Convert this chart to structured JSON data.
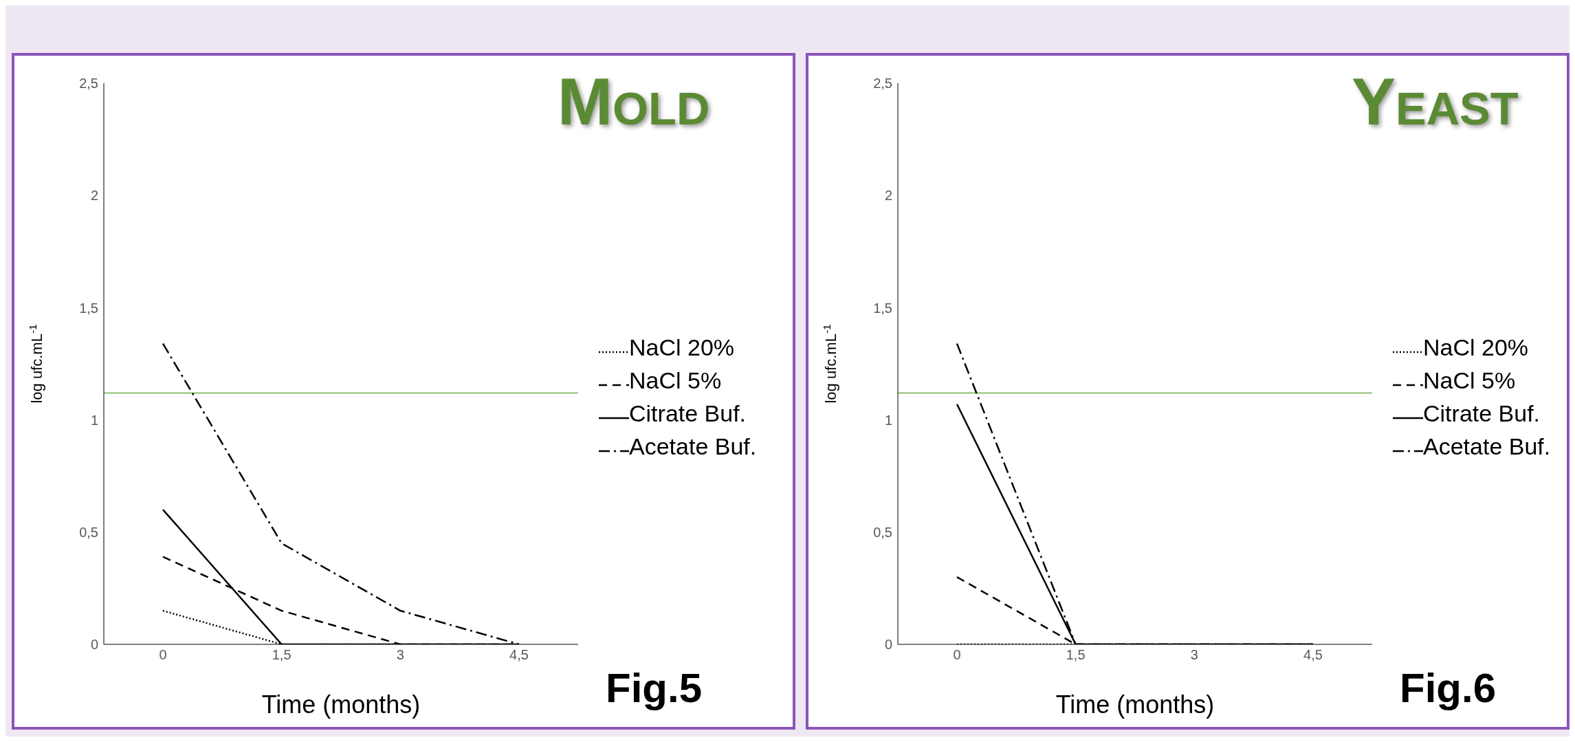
{
  "chart_data": [
    {
      "type": "line",
      "title": "Mold",
      "xlabel": "Time (months)",
      "ylabel": "log ufc.mL$^{-1}$",
      "categories": [
        "0",
        "1,5",
        "3",
        "4,5"
      ],
      "ylim": [
        0,
        2.5
      ],
      "yticks": [
        {
          "value": 0,
          "label": "0"
        },
        {
          "value": 0.5,
          "label": "0,5"
        },
        {
          "value": 1,
          "label": "1"
        },
        {
          "value": 1.5,
          "label": "1,5"
        },
        {
          "value": 2,
          "label": "2"
        },
        {
          "value": 2.5,
          "label": "2,5"
        }
      ],
      "legend": "right",
      "annotations": [
        "Fig.5"
      ],
      "ref_lines": [
        {
          "axis": "y",
          "value": 1.12,
          "color": "#70ad47"
        }
      ],
      "series": [
        {
          "name": "NaCl 20%",
          "color": "#000000",
          "line_style": "dotted",
          "values": [
            0.15,
            0,
            0,
            0
          ]
        },
        {
          "name": "NaCl 5%",
          "color": "#000000",
          "line_style": "dashed",
          "values": [
            0.39,
            0.15,
            0,
            0
          ]
        },
        {
          "name": "Citrate Buf.",
          "color": "#000000",
          "line_style": "solid",
          "values": [
            0.6,
            0,
            0,
            0
          ]
        },
        {
          "name": "Acetate Buf.",
          "color": "#000000",
          "line_style": "dashdot",
          "values": [
            1.34,
            0.45,
            0.15,
            0
          ]
        }
      ]
    },
    {
      "type": "line",
      "title": "Yeast",
      "xlabel": "Time (months)",
      "ylabel": "log ufc.mL$^{-1}$",
      "categories": [
        "0",
        "1,5",
        "3",
        "4,5"
      ],
      "ylim": [
        0,
        2.5
      ],
      "yticks": [
        {
          "value": 0,
          "label": "0"
        },
        {
          "value": 0.5,
          "label": "0,5"
        },
        {
          "value": 1,
          "label": "1"
        },
        {
          "value": 1.5,
          "label": "1,5"
        },
        {
          "value": 2,
          "label": "2"
        },
        {
          "value": 2.5,
          "label": "2,5"
        }
      ],
      "legend": "right",
      "annotations": [
        "Fig.6"
      ],
      "ref_lines": [
        {
          "axis": "y",
          "value": 1.12,
          "color": "#70ad47"
        }
      ],
      "series": [
        {
          "name": "NaCl 20%",
          "color": "#000000",
          "line_style": "dotted",
          "values": [
            0,
            0,
            0,
            0
          ]
        },
        {
          "name": "NaCl 5%",
          "color": "#000000",
          "line_style": "dashed",
          "values": [
            0.3,
            0,
            0,
            0
          ]
        },
        {
          "name": "Citrate Buf.",
          "color": "#000000",
          "line_style": "solid",
          "values": [
            1.07,
            0,
            0,
            0
          ]
        },
        {
          "name": "Acetate Buf.",
          "color": "#000000",
          "line_style": "dashdot",
          "values": [
            1.34,
            0,
            0,
            0
          ]
        }
      ]
    }
  ]
}
